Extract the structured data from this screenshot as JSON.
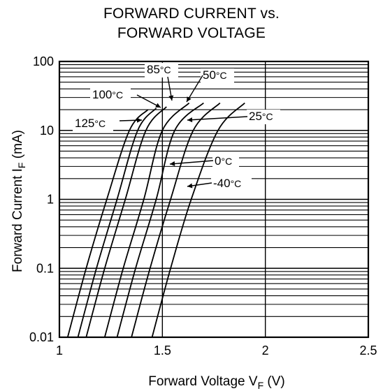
{
  "chart_data": {
    "type": "line",
    "title_line1": "FORWARD CURRENT vs.",
    "title_line2": "FORWARD VOLTAGE",
    "xlabel_main": "Forward Voltage V",
    "xlabel_sub": "F",
    "xlabel_unit": " (V)",
    "ylabel_main": "Forward Current I",
    "ylabel_sub": "F",
    "ylabel_unit": " (mA)",
    "x_scale": "linear",
    "y_scale": "log",
    "xlim": [
      1,
      2.5
    ],
    "ylim": [
      0.01,
      100
    ],
    "x_ticks": [
      {
        "value": 1,
        "label": "1"
      },
      {
        "value": 1.5,
        "label": "1.5"
      },
      {
        "value": 2,
        "label": "2"
      },
      {
        "value": 2.5,
        "label": "2.5"
      }
    ],
    "y_ticks": [
      {
        "value": 0.01,
        "label": "0.01"
      },
      {
        "value": 0.1,
        "label": "0.1"
      },
      {
        "value": 1,
        "label": "1"
      },
      {
        "value": 10,
        "label": "10"
      },
      {
        "value": 100,
        "label": "100"
      }
    ],
    "grid": true,
    "series": [
      {
        "name": "125°C",
        "name_main": "125",
        "unit": "°C",
        "points": [
          [
            1.04,
            0.01
          ],
          [
            1.13,
            0.1
          ],
          [
            1.23,
            1
          ],
          [
            1.34,
            10
          ],
          [
            1.43,
            20
          ]
        ]
      },
      {
        "name": "100°C",
        "name_main": "100",
        "unit": "°C",
        "points": [
          [
            1.09,
            0.01
          ],
          [
            1.18,
            0.1
          ],
          [
            1.28,
            1
          ],
          [
            1.38,
            10
          ],
          [
            1.47,
            21
          ]
        ]
      },
      {
        "name": "85°C",
        "name_main": "85",
        "unit": "°C",
        "points": [
          [
            1.13,
            0.01
          ],
          [
            1.22,
            0.1
          ],
          [
            1.32,
            1
          ],
          [
            1.42,
            10
          ],
          [
            1.52,
            22
          ]
        ]
      },
      {
        "name": "50°C",
        "name_main": "50",
        "unit": "°C",
        "points": [
          [
            1.22,
            0.01
          ],
          [
            1.31,
            0.1
          ],
          [
            1.41,
            1
          ],
          [
            1.5,
            10
          ],
          [
            1.63,
            25
          ]
        ]
      },
      {
        "name": "25°C",
        "name_main": "25",
        "unit": "°C",
        "points": [
          [
            1.28,
            0.01
          ],
          [
            1.37,
            0.1
          ],
          [
            1.47,
            1
          ],
          [
            1.56,
            10
          ],
          [
            1.7,
            25
          ]
        ]
      },
      {
        "name": "0°C",
        "name_main": "0",
        "unit": "°C",
        "points": [
          [
            1.35,
            0.01
          ],
          [
            1.44,
            0.1
          ],
          [
            1.54,
            1
          ],
          [
            1.65,
            10
          ],
          [
            1.78,
            25
          ]
        ]
      },
      {
        "name": "-40°C",
        "name_main": "-40",
        "unit": "°C",
        "points": [
          [
            1.45,
            0.01
          ],
          [
            1.54,
            0.1
          ],
          [
            1.64,
            1
          ],
          [
            1.77,
            10
          ],
          [
            1.9,
            25
          ]
        ]
      }
    ]
  }
}
